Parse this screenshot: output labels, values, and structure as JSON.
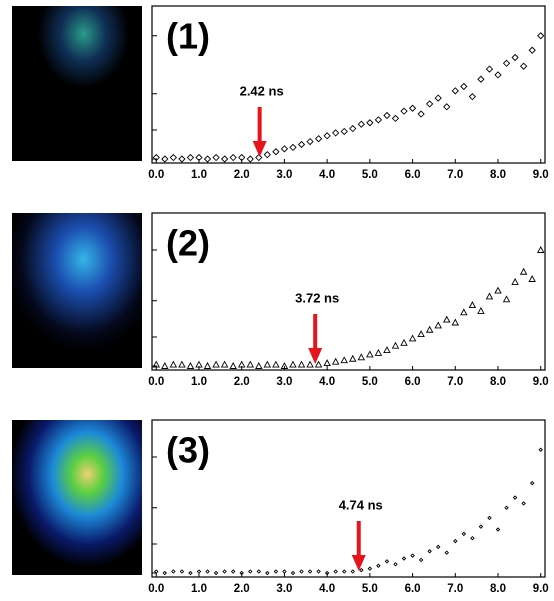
{
  "chart_data": [
    {
      "type": "scatter",
      "label": "(1)",
      "marker": "diamond",
      "color": "#000000",
      "annotations": [
        {
          "text": "2.42 ns",
          "x": 2.42,
          "color": "#e8141c"
        }
      ],
      "x": [
        0,
        0.2,
        0.4,
        0.6,
        0.8,
        1,
        1.2,
        1.4,
        1.6,
        1.8,
        2,
        2.2,
        2.4,
        2.6,
        2.8,
        3,
        3.2,
        3.4,
        3.6,
        3.8,
        4,
        4.2,
        4.4,
        4.6,
        4.8,
        5,
        5.2,
        5.4,
        5.6,
        5.8,
        6,
        6.2,
        6.4,
        6.6,
        6.8,
        7,
        7.2,
        7.4,
        7.6,
        7.8,
        8,
        8.2,
        8.4,
        8.6,
        8.8,
        9
      ],
      "values": [
        1,
        0,
        1,
        0,
        1,
        1,
        0,
        1,
        0,
        1,
        1,
        0,
        1,
        3,
        5,
        7,
        8,
        10,
        12,
        14,
        16,
        18,
        19,
        21,
        24,
        25,
        27,
        30,
        28,
        33,
        35,
        31,
        38,
        42,
        36,
        47,
        50,
        43,
        55,
        62,
        58,
        66,
        70,
        64,
        75,
        85
      ],
      "xlim": [
        -0.1,
        9.1
      ],
      "ylim": [
        0,
        100
      ],
      "yticks": [
        0,
        20,
        45,
        85
      ],
      "xticks": [
        {
          "value": 0,
          "label": "0.0"
        },
        {
          "value": 1,
          "label": "1.0"
        },
        {
          "value": 2,
          "label": "2.0"
        },
        {
          "value": 3,
          "label": "3.0"
        },
        {
          "value": 4,
          "label": "4.0"
        },
        {
          "value": 5,
          "label": "5.0"
        },
        {
          "value": 6,
          "label": "6.0"
        },
        {
          "value": 7,
          "label": "7.0"
        },
        {
          "value": 8,
          "label": "8.0"
        },
        {
          "value": 9,
          "label": "9.0"
        }
      ]
    },
    {
      "type": "scatter",
      "label": "(2)",
      "marker": "triangle",
      "color": "#000000",
      "annotations": [
        {
          "text": "3.72 ns",
          "x": 3.72,
          "color": "#e8141c"
        }
      ],
      "x": [
        0,
        0.2,
        0.4,
        0.6,
        0.8,
        1,
        1.2,
        1.4,
        1.6,
        1.8,
        2,
        2.2,
        2.4,
        2.6,
        2.8,
        3,
        3.2,
        3.4,
        3.6,
        3.8,
        4,
        4.2,
        4.4,
        4.6,
        4.8,
        5,
        5.2,
        5.4,
        5.6,
        5.8,
        6,
        6.2,
        6.4,
        6.6,
        6.8,
        7,
        7.2,
        7.4,
        7.6,
        7.8,
        8,
        8.2,
        8.4,
        8.6,
        8.8,
        9
      ],
      "values": [
        1,
        0,
        1,
        1,
        0,
        1,
        0,
        1,
        1,
        0,
        1,
        1,
        0,
        1,
        1,
        0,
        1,
        1,
        1,
        1,
        2,
        3,
        4,
        5,
        6,
        8,
        9,
        11,
        14,
        16,
        19,
        22,
        25,
        28,
        32,
        30,
        37,
        42,
        38,
        48,
        52,
        46,
        58,
        65,
        60,
        80
      ],
      "xlim": [
        -0.1,
        9.1
      ],
      "ylim": [
        0,
        100
      ],
      "yticks": [
        0,
        20,
        45,
        80
      ],
      "xticks": [
        {
          "value": 0,
          "label": "0.0"
        },
        {
          "value": 1,
          "label": "1.0"
        },
        {
          "value": 2,
          "label": "2.0"
        },
        {
          "value": 3,
          "label": "3.0"
        },
        {
          "value": 4,
          "label": "4.0"
        },
        {
          "value": 5,
          "label": "5.0"
        },
        {
          "value": 6,
          "label": "6.0"
        },
        {
          "value": 7,
          "label": "7.0"
        },
        {
          "value": 8,
          "label": "8.0"
        },
        {
          "value": 9,
          "label": "9.0"
        }
      ]
    },
    {
      "type": "scatter",
      "label": "(3)",
      "marker": "dot",
      "color": "#000000",
      "annotations": [
        {
          "text": "4.74 ns",
          "x": 4.74,
          "color": "#e8141c"
        }
      ],
      "x": [
        0,
        0.2,
        0.4,
        0.6,
        0.8,
        1,
        1.2,
        1.4,
        1.6,
        1.8,
        2,
        2.2,
        2.4,
        2.6,
        2.8,
        3,
        3.2,
        3.4,
        3.6,
        3.8,
        4,
        4.2,
        4.4,
        4.6,
        4.8,
        5,
        5.2,
        5.4,
        5.6,
        5.8,
        6,
        6.2,
        6.4,
        6.6,
        6.8,
        7,
        7.2,
        7.4,
        7.6,
        7.8,
        8,
        8.2,
        8.4,
        8.6,
        8.8,
        9
      ],
      "values": [
        1,
        0,
        1,
        1,
        0,
        1,
        1,
        0,
        1,
        1,
        0,
        1,
        1,
        0,
        1,
        1,
        0,
        1,
        1,
        1,
        0,
        1,
        1,
        1,
        2,
        3,
        5,
        8,
        6,
        10,
        12,
        9,
        15,
        18,
        14,
        22,
        27,
        24,
        32,
        38,
        30,
        45,
        52,
        48,
        62,
        85
      ],
      "xlim": [
        -0.1,
        9.1
      ],
      "ylim": [
        0,
        100
      ],
      "yticks": [
        0,
        20,
        45,
        80
      ],
      "xticks": [
        {
          "value": 0,
          "label": "0.0"
        },
        {
          "value": 1,
          "label": "1.0"
        },
        {
          "value": 2,
          "label": "2.0"
        },
        {
          "value": 3,
          "label": "3.0"
        },
        {
          "value": 4,
          "label": "4.0"
        },
        {
          "value": 5,
          "label": "5.0"
        },
        {
          "value": 6,
          "label": "6.0"
        },
        {
          "value": 7,
          "label": "7.0"
        },
        {
          "value": 8,
          "label": "8.0"
        },
        {
          "value": 9,
          "label": "9.0"
        }
      ]
    }
  ]
}
